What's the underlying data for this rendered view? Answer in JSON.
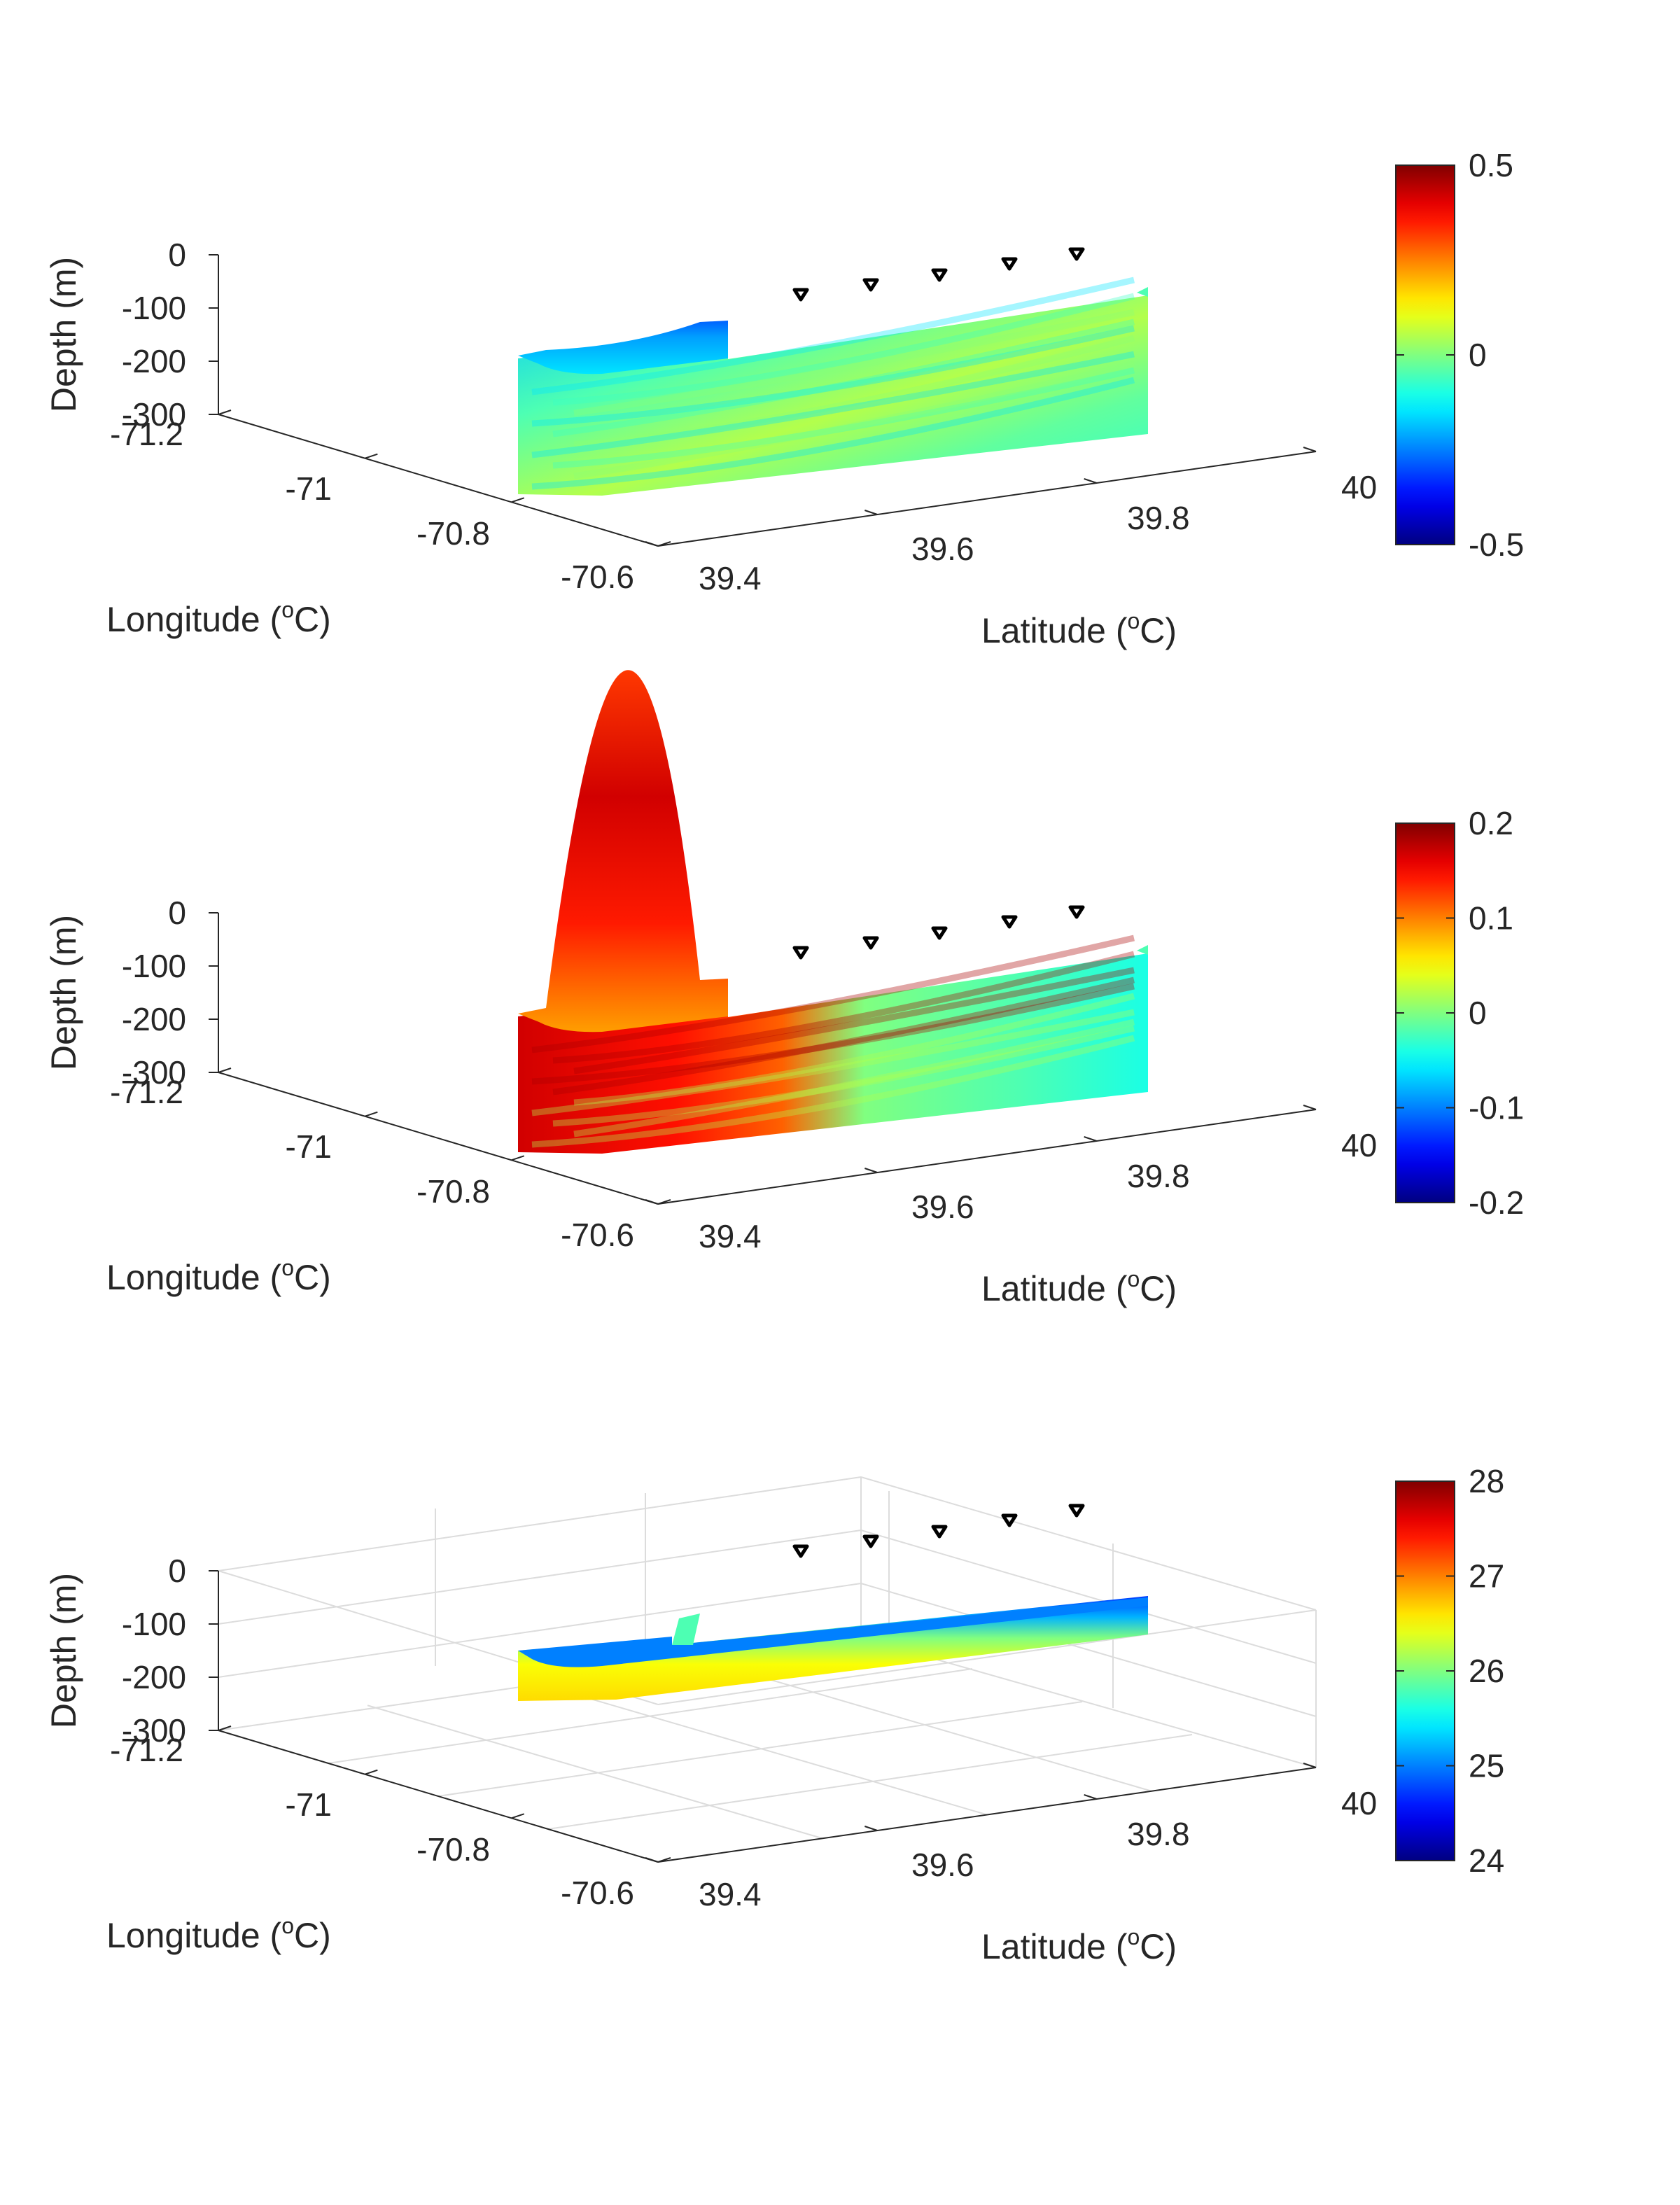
{
  "figure": {
    "colormap": "jet",
    "background": "#ffffff",
    "axis_color": "#262626",
    "grid_color": "#dcdcdc",
    "station_marker_color": "#000000"
  },
  "chart_data": [
    {
      "type": "surface3d",
      "panel": "top",
      "xlabel": "Longitude (oC)",
      "xlabel_parts": {
        "main": "Longitude (",
        "sup": "o",
        "tail": "C)"
      },
      "ylabel": "Latitude (oC)",
      "ylabel_parts": {
        "main": "Latitude (",
        "sup": "o",
        "tail": "C)"
      },
      "zlabel": "Depth (m)",
      "x_ticks": [
        "-71.2",
        "-71",
        "-70.8",
        "-70.6"
      ],
      "y_ticks": [
        "39.4",
        "39.6",
        "39.8",
        "40"
      ],
      "z_ticks": [
        "0",
        "-100",
        "-200",
        "-300"
      ],
      "xlim": [
        -71.2,
        -70.6
      ],
      "ylim": [
        39.4,
        40.0
      ],
      "zlim": [
        -300,
        0
      ],
      "grid": false,
      "colorbar": {
        "ticks": [
          "0.5",
          "0",
          "-0.5"
        ],
        "clim": [
          -0.5,
          0.5
        ],
        "position": "right"
      },
      "stations": 5,
      "section_pattern": "mostly near-zero cyan/green with blue near the western surface"
    },
    {
      "type": "surface3d",
      "panel": "middle",
      "xlabel": "Longitude (oC)",
      "xlabel_parts": {
        "main": "Longitude (",
        "sup": "o",
        "tail": "C)"
      },
      "ylabel": "Latitude (oC)",
      "ylabel_parts": {
        "main": "Latitude (",
        "sup": "o",
        "tail": "C)"
      },
      "zlabel": "Depth (m)",
      "x_ticks": [
        "-71.2",
        "-71",
        "-70.8",
        "-70.6"
      ],
      "y_ticks": [
        "39.4",
        "39.6",
        "39.8",
        "40"
      ],
      "z_ticks": [
        "0",
        "-100",
        "-200",
        "-300"
      ],
      "xlim": [
        -71.2,
        -70.6
      ],
      "ylim": [
        39.4,
        40.0
      ],
      "zlim": [
        -300,
        0
      ],
      "grid": false,
      "colorbar": {
        "ticks": [
          "0.2",
          "0.1",
          "0",
          "-0.1",
          "-0.2"
        ],
        "clim": [
          -0.2,
          0.2
        ],
        "position": "right"
      },
      "stations": 5,
      "section_pattern": "positive (red) at the southern end, near zero to the north"
    },
    {
      "type": "surface3d",
      "panel": "bottom",
      "xlabel": "Longitude (oC)",
      "xlabel_parts": {
        "main": "Longitude (",
        "sup": "o",
        "tail": "C)"
      },
      "ylabel": "Latitude (oC)",
      "ylabel_parts": {
        "main": "Latitude (",
        "sup": "o",
        "tail": "C)"
      },
      "zlabel": "Depth (m)",
      "x_ticks": [
        "-71.2",
        "-71",
        "-70.8",
        "-70.6"
      ],
      "y_ticks": [
        "39.4",
        "39.6",
        "39.8",
        "40"
      ],
      "z_ticks": [
        "0",
        "-100",
        "-200",
        "-300"
      ],
      "xlim": [
        -71.2,
        -70.6
      ],
      "ylim": [
        39.4,
        40.0
      ],
      "zlim": [
        -300,
        0
      ],
      "grid": true,
      "colorbar": {
        "ticks": [
          "28",
          "27",
          "26",
          "25",
          "24"
        ],
        "clim": [
          24,
          28
        ],
        "position": "right"
      },
      "stations": 5,
      "section_pattern": "about 25 near the surface increasing to about 26.5 at depth"
    }
  ]
}
